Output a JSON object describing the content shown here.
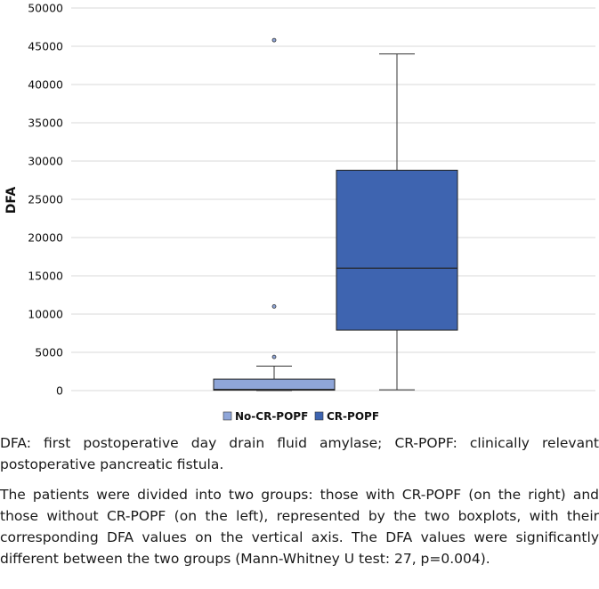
{
  "chart_data": {
    "type": "box",
    "title": "",
    "xlabel": "",
    "ylabel": "DFA",
    "ylim": [
      0,
      50000
    ],
    "yticks": [
      0,
      5000,
      10000,
      15000,
      20000,
      25000,
      30000,
      35000,
      40000,
      45000,
      50000
    ],
    "ytick_labels": [
      "0",
      "5000",
      "10000",
      "15000",
      "20000",
      "25000",
      "30000",
      "35000",
      "40000",
      "45000",
      "50000"
    ],
    "grid": true,
    "legend_position": "bottom",
    "series": [
      {
        "name": "No-CR-POPF",
        "color": "#8fa6d9",
        "whisker_low": 0,
        "q1": 50,
        "median": 150,
        "q3": 1500,
        "whisker_high": 3200,
        "outliers": [
          4400,
          11000,
          45800
        ]
      },
      {
        "name": "CR-POPF",
        "color": "#3e64b0",
        "whisker_low": 100,
        "q1": 7900,
        "median": 16000,
        "q3": 28800,
        "whisker_high": 44000,
        "outliers": []
      }
    ]
  },
  "caption": {
    "definition": "DFA: first postoperative day drain fluid amylase; CR-POPF: clinically relevant postoperative pancreatic fistula.",
    "description": "The patients were divided into two groups: those with CR-POPF (on the right) and those without CR-POPF (on the left), represented by the two boxplots, with their corresponding DFA values on the vertical axis. The DFA values were significantly different between the two groups (Mann-Whitney U test: 27, p=0.004)."
  }
}
